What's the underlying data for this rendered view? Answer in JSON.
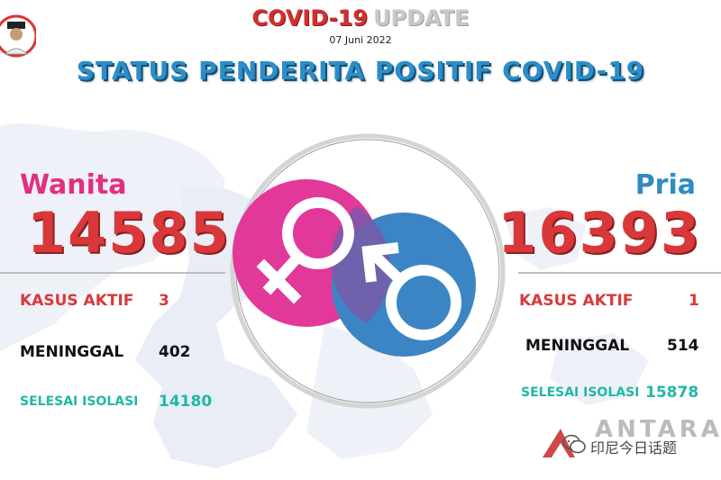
{
  "header": {
    "title_red": "COVID-19",
    "title_grey": "UPDATE",
    "date": "07 Juni 2022",
    "main_title": "STATUS PENDERITA POSITIF COVID-19"
  },
  "female": {
    "label": "Wanita",
    "total": "14585",
    "kasus_aktif_label": "KASUS AKTIF",
    "kasus_aktif_value": "3",
    "meninggal_label": "MENINGGAL",
    "meninggal_value": "402",
    "selesai_label": "SELESAI ISOLASI",
    "selesai_value": "14180"
  },
  "male": {
    "label": "Pria",
    "total": "16393",
    "kasus_aktif_label": "KASUS AKTIF",
    "kasus_aktif_value": "1",
    "meninggal_label": "MENINGGAL",
    "meninggal_value": "514",
    "selesai_label": "SELESAI ISOLASI",
    "selesai_value": "15878"
  },
  "watermark": {
    "agency": "ANTARA",
    "caption": "印尼今日话题"
  },
  "colors": {
    "female_pink": "#e1307e",
    "male_blue": "#2f8bc6",
    "number_red": "#d9383a",
    "isolasi_teal": "#21b7a6"
  },
  "icons": [
    "venus-icon",
    "mars-icon",
    "official-portrait-logo",
    "wechat-icon"
  ]
}
